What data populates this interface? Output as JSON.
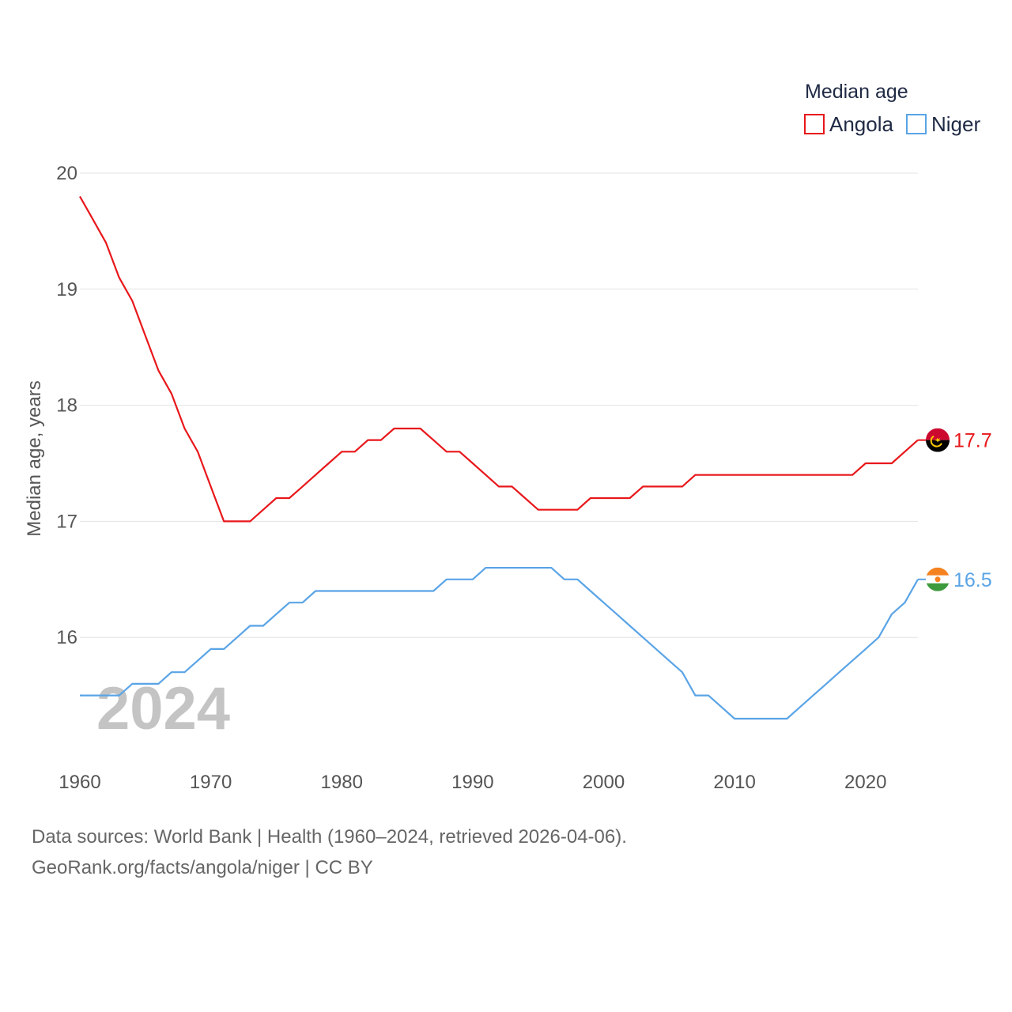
{
  "chart_data": {
    "type": "line",
    "title": "",
    "xlabel": "",
    "ylabel": "Median age, years",
    "xlim": [
      1960,
      2024
    ],
    "ylim": [
      15,
      20
    ],
    "x_ticks": [
      1960,
      1970,
      1980,
      1990,
      2000,
      2010,
      2020
    ],
    "y_ticks": [
      16,
      17,
      18,
      19,
      20
    ],
    "grid": true,
    "legend": {
      "title": "Median age",
      "placement": "top-right",
      "entries": [
        "Angola",
        "Niger"
      ]
    },
    "watermark_year": "2024",
    "x": [
      1960,
      1961,
      1962,
      1963,
      1964,
      1965,
      1966,
      1967,
      1968,
      1969,
      1970,
      1971,
      1972,
      1973,
      1974,
      1975,
      1976,
      1977,
      1978,
      1979,
      1980,
      1981,
      1982,
      1983,
      1984,
      1985,
      1986,
      1987,
      1988,
      1989,
      1990,
      1991,
      1992,
      1993,
      1994,
      1995,
      1996,
      1997,
      1998,
      1999,
      2000,
      2001,
      2002,
      2003,
      2004,
      2005,
      2006,
      2007,
      2008,
      2009,
      2010,
      2011,
      2012,
      2013,
      2014,
      2015,
      2016,
      2017,
      2018,
      2019,
      2020,
      2021,
      2022,
      2023,
      2024
    ],
    "series": [
      {
        "name": "Angola",
        "color": "#e8171b",
        "flag": "angola-flag-icon",
        "end_label": "17.7",
        "values": [
          19.8,
          19.6,
          19.4,
          19.1,
          18.9,
          18.6,
          18.3,
          18.1,
          17.8,
          17.6,
          17.3,
          17.0,
          17.0,
          17.0,
          17.1,
          17.2,
          17.2,
          17.3,
          17.4,
          17.5,
          17.6,
          17.6,
          17.7,
          17.7,
          17.8,
          17.8,
          17.8,
          17.7,
          17.6,
          17.6,
          17.5,
          17.4,
          17.3,
          17.3,
          17.2,
          17.1,
          17.1,
          17.1,
          17.1,
          17.2,
          17.2,
          17.2,
          17.2,
          17.3,
          17.3,
          17.3,
          17.3,
          17.4,
          17.4,
          17.4,
          17.4,
          17.4,
          17.4,
          17.4,
          17.4,
          17.4,
          17.4,
          17.4,
          17.4,
          17.4,
          17.5,
          17.5,
          17.5,
          17.6,
          17.7
        ]
      },
      {
        "name": "Niger",
        "color": "#5aa4e6",
        "flag": "niger-flag-icon",
        "end_label": "16.5",
        "values": [
          15.5,
          15.5,
          15.5,
          15.5,
          15.6,
          15.6,
          15.6,
          15.7,
          15.7,
          15.8,
          15.9,
          15.9,
          16.0,
          16.1,
          16.1,
          16.2,
          16.3,
          16.3,
          16.4,
          16.4,
          16.4,
          16.4,
          16.4,
          16.4,
          16.4,
          16.4,
          16.4,
          16.4,
          16.5,
          16.5,
          16.5,
          16.6,
          16.6,
          16.6,
          16.6,
          16.6,
          16.6,
          16.5,
          16.5,
          16.4,
          16.3,
          16.2,
          16.1,
          16.0,
          15.9,
          15.8,
          15.7,
          15.5,
          15.5,
          15.4,
          15.3,
          15.3,
          15.3,
          15.3,
          15.3,
          15.4,
          15.5,
          15.6,
          15.7,
          15.8,
          15.9,
          16.0,
          16.2,
          16.3,
          16.5
        ]
      }
    ]
  },
  "footer": {
    "source_line": "Data sources: World Bank | Health (1960–2024, retrieved 2026-04-06).",
    "credit_line": "GeoRank.org/facts/angola/niger | CC BY"
  }
}
